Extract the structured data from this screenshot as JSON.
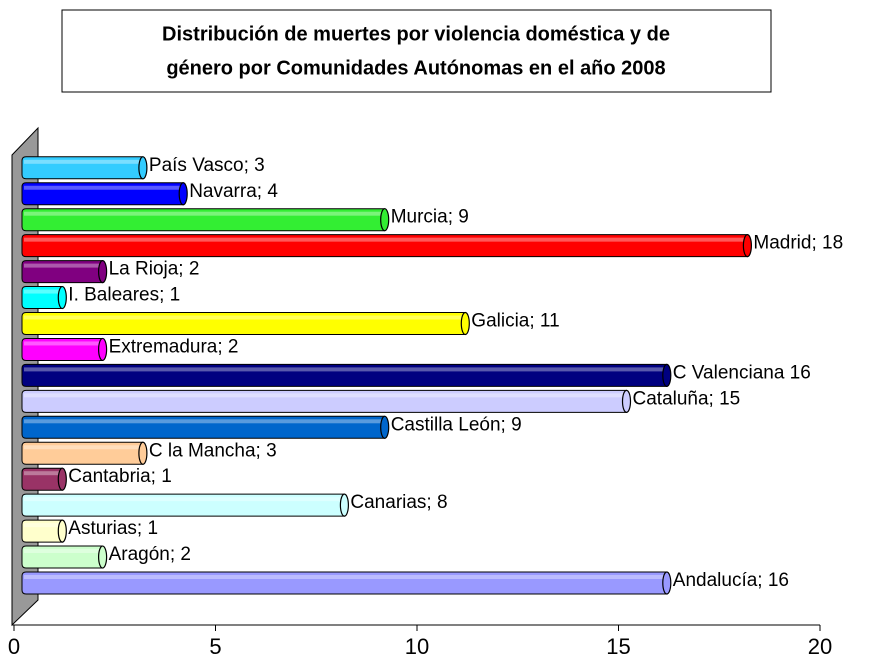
{
  "chart_data": {
    "type": "bar",
    "title": [
      "Distribución de muertes por violencia doméstica y de",
      "género por Comunidades Autónomas en el año 2008"
    ],
    "values": [
      16,
      2,
      1,
      8,
      1,
      3,
      9,
      15,
      16,
      2,
      11,
      1,
      2,
      18,
      9,
      4,
      3
    ],
    "value_labels": [
      "Andalucía; 16",
      "Aragón; 2",
      "Asturias; 1",
      "Canarias; 8",
      "Cantabria; 1",
      "C la Mancha; 3",
      "Castilla León; 9",
      "Cataluña; 15",
      "C Valenciana 16",
      "Extremadura; 2",
      "Galicia; 11",
      "I.  Baleares; 1",
      "La Rioja; 2",
      "Madrid; 18",
      "Murcia; 9",
      "Navarra; 4",
      "País Vasco; 3"
    ],
    "colors": [
      "#9999ff",
      "#ccffcc",
      "#ffffcc",
      "#ccffff",
      "#993366",
      "#ffcc99",
      "#0066cc",
      "#ccccff",
      "#000080",
      "#ff00ff",
      "#ffff00",
      "#00ffff",
      "#800080",
      "#ff0000",
      "#33ee33",
      "#0000ff",
      "#33ccff"
    ],
    "xlim": [
      0,
      20
    ],
    "xticks": [
      0,
      5,
      10,
      15,
      20
    ]
  }
}
